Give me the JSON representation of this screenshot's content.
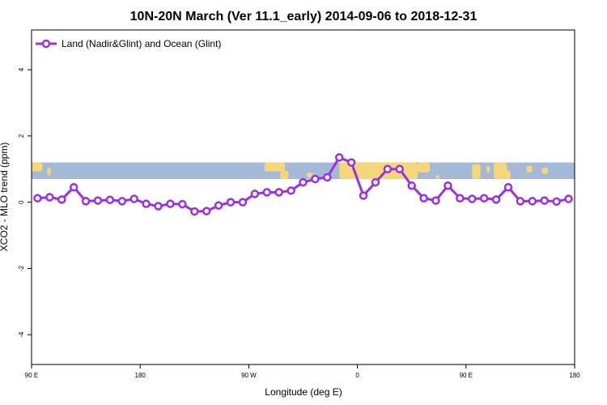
{
  "chart_data": {
    "type": "line",
    "title": "10N-20N March (Ver 11.1_early)   2014-09-06 to 2018-12-31",
    "xlabel": "Longitude (deg E)",
    "ylabel": "XCO2 - MLO trend (ppm)",
    "xlim": [
      90,
      540
    ],
    "ylim": [
      -4.9,
      5.2
    ],
    "x_ticks": [
      {
        "value": 90,
        "label": "90 E"
      },
      {
        "value": 180,
        "label": "180"
      },
      {
        "value": 270,
        "label": "90 W"
      },
      {
        "value": 360,
        "label": "0"
      },
      {
        "value": 450,
        "label": "90 E"
      },
      {
        "value": 540,
        "label": "180"
      }
    ],
    "y_ticks": [
      {
        "value": -4,
        "label": "-4"
      },
      {
        "value": -2,
        "label": "-2"
      },
      {
        "value": 0,
        "label": "0"
      },
      {
        "value": 2,
        "label": "2"
      },
      {
        "value": 4,
        "label": "4"
      }
    ],
    "grid": false,
    "legend_position": "top-left",
    "map_strip": {
      "ymin": 0.7,
      "ymax": 1.2,
      "ocean_color": "#a4b8d8",
      "land_color": "#f5d77a"
    },
    "series": [
      {
        "name": "Land (Nadir&Glint) and Ocean (Glint)",
        "color": "#9b30e0",
        "x": [
          95,
          105,
          115,
          125,
          135,
          145,
          155,
          165,
          175,
          185,
          195,
          205,
          215,
          225,
          235,
          245,
          255,
          265,
          275,
          285,
          295,
          305,
          315,
          325,
          335,
          345,
          355,
          365,
          375,
          385,
          395,
          405,
          415,
          425,
          435,
          445,
          455,
          465,
          475,
          485,
          495,
          505,
          515,
          525,
          535
        ],
        "values": [
          0.12,
          0.15,
          0.08,
          0.45,
          0.03,
          0.05,
          0.07,
          0.03,
          0.1,
          -0.05,
          -0.12,
          -0.05,
          -0.06,
          -0.28,
          -0.27,
          -0.1,
          0.0,
          0.0,
          0.25,
          0.3,
          0.3,
          0.35,
          0.6,
          0.7,
          0.75,
          1.35,
          1.2,
          0.2,
          0.6,
          1.0,
          1.0,
          0.5,
          0.12,
          0.05,
          0.5,
          0.12,
          0.1,
          0.12,
          0.08,
          0.45,
          0.03,
          0.03,
          0.05,
          0.02,
          0.1
        ]
      }
    ]
  }
}
